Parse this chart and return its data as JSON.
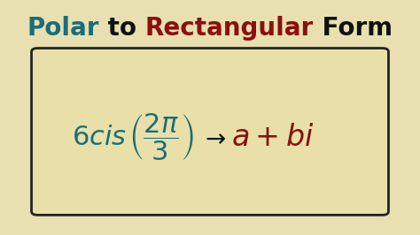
{
  "bg_color": "#e8e0b0",
  "title_segments": [
    {
      "text": "Polar",
      "color": "#1a6e78"
    },
    {
      "text": " to ",
      "color": "#111111"
    },
    {
      "text": "Rectangular",
      "color": "#8b1010"
    },
    {
      "text": " Form",
      "color": "#111111"
    }
  ],
  "box_bg": "#e8e0a8",
  "box_edge": "#222222",
  "formula_color": "#1a6e78",
  "arrow_color": "#111111",
  "result_color": "#8b1010",
  "title_fontsize": 20,
  "formula_fontsize": 22,
  "arrow_fontsize": 20,
  "result_fontsize": 24
}
